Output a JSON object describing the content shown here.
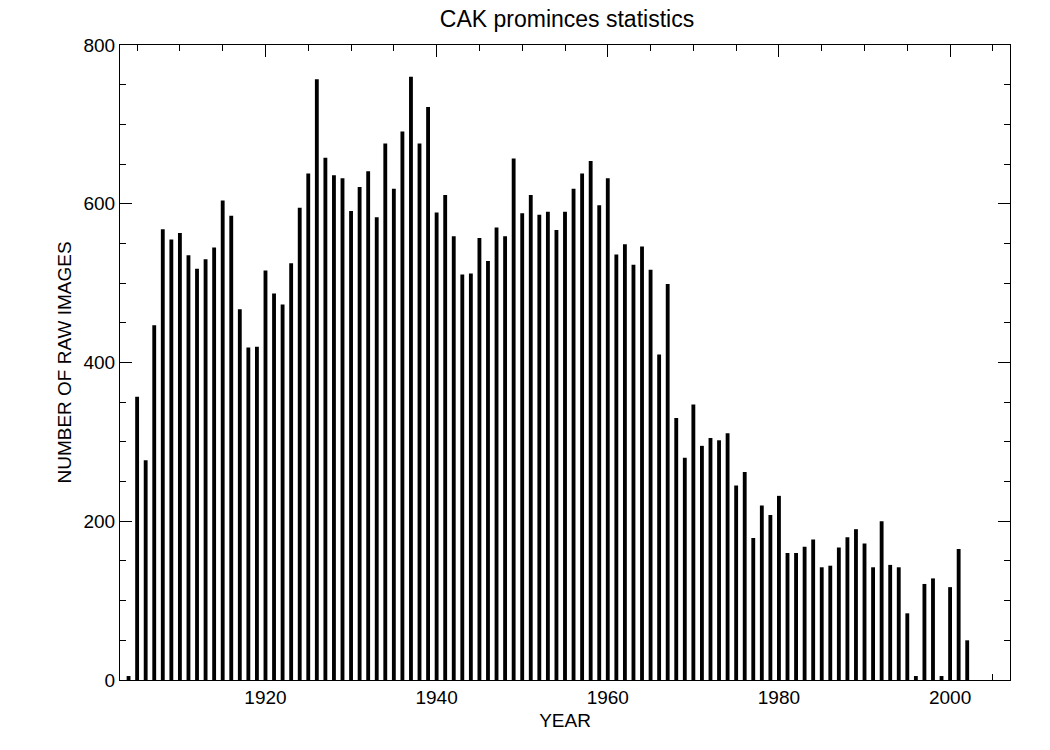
{
  "chart_data": {
    "type": "bar",
    "title": "CAK prominces statistics",
    "x_label": "YEAR",
    "y_label": "NUMBER OF RAW IMAGES",
    "x": [
      1904,
      1905,
      1906,
      1907,
      1908,
      1909,
      1910,
      1911,
      1912,
      1913,
      1914,
      1915,
      1916,
      1917,
      1918,
      1919,
      1920,
      1921,
      1922,
      1923,
      1924,
      1925,
      1926,
      1927,
      1928,
      1929,
      1930,
      1931,
      1932,
      1933,
      1934,
      1935,
      1936,
      1937,
      1938,
      1939,
      1940,
      1941,
      1942,
      1943,
      1944,
      1945,
      1946,
      1947,
      1948,
      1949,
      1950,
      1951,
      1952,
      1953,
      1954,
      1955,
      1956,
      1957,
      1958,
      1959,
      1960,
      1961,
      1962,
      1963,
      1964,
      1965,
      1966,
      1967,
      1968,
      1969,
      1970,
      1971,
      1972,
      1973,
      1974,
      1975,
      1976,
      1977,
      1978,
      1979,
      1980,
      1981,
      1982,
      1983,
      1984,
      1985,
      1986,
      1987,
      1988,
      1989,
      1990,
      1991,
      1992,
      1993,
      1994,
      1995,
      1996,
      1997,
      1998,
      1999,
      2000,
      2001,
      2002
    ],
    "values": [
      5,
      357,
      277,
      447,
      568,
      555,
      563,
      535,
      518,
      530,
      545,
      604,
      585,
      467,
      419,
      420,
      516,
      487,
      473,
      525,
      595,
      638,
      757,
      658,
      636,
      632,
      591,
      621,
      641,
      583,
      676,
      619,
      691,
      760,
      676,
      722,
      589,
      611,
      559,
      511,
      512,
      557,
      528,
      570,
      559,
      657,
      588,
      611,
      586,
      590,
      567,
      590,
      619,
      638,
      654,
      598,
      632,
      536,
      549,
      523,
      546,
      517,
      410,
      499,
      330,
      280,
      347,
      295,
      305,
      302,
      311,
      245,
      262,
      179,
      220,
      208,
      232,
      160,
      160,
      168,
      177,
      142,
      144,
      167,
      180,
      190,
      172,
      142,
      200,
      145,
      142,
      84,
      5,
      121,
      128,
      5,
      117,
      165,
      50
    ],
    "color": "#000000",
    "xlim": [
      1903,
      2007
    ],
    "xticks": [
      1920,
      1940,
      1960,
      1980,
      2000
    ],
    "ylim": [
      0,
      800
    ],
    "yticks": [
      0,
      200,
      400,
      600,
      800
    ],
    "grid": false
  }
}
